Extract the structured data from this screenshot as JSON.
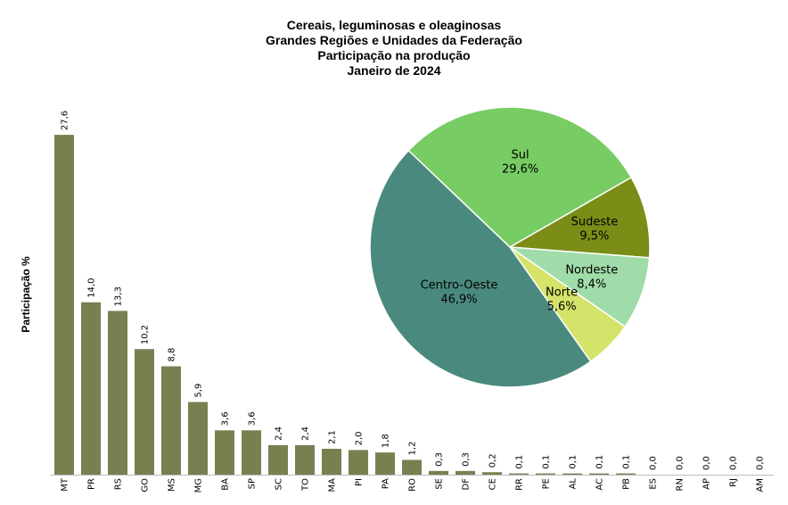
{
  "chart_data": [
    {
      "type": "bar",
      "title_lines": [
        "Cereais, leguminosas e oleaginosas",
        "Grandes Regiões e Unidades da Federação",
        "Participação na produção",
        "Janeiro de 2024"
      ],
      "ylabel": "Participação %",
      "xlabel": "",
      "ylim": [
        0,
        30
      ],
      "grid": false,
      "bar_color": "#788050",
      "categories": [
        "MT",
        "PR",
        "RS",
        "GO",
        "MS",
        "MG",
        "BA",
        "SP",
        "SC",
        "TO",
        "MA",
        "PI",
        "PA",
        "RO",
        "SE",
        "DF",
        "CE",
        "RR",
        "PE",
        "AL",
        "AC",
        "PB",
        "ES",
        "RN",
        "AP",
        "RJ",
        "AM"
      ],
      "values": [
        27.6,
        14.0,
        13.3,
        10.2,
        8.8,
        5.9,
        3.6,
        3.6,
        2.4,
        2.4,
        2.1,
        2.0,
        1.8,
        1.2,
        0.3,
        0.3,
        0.2,
        0.1,
        0.1,
        0.1,
        0.1,
        0.1,
        0.0,
        0.0,
        0.0,
        0.0,
        0.0
      ],
      "value_labels": [
        "27,6",
        "14,0",
        "13,3",
        "10,2",
        "8,8",
        "5,9",
        "3,6",
        "3,6",
        "2,4",
        "2,4",
        "2,1",
        "2,0",
        "1,8",
        "1,2",
        "0,3",
        "0,3",
        "0,2",
        "0,1",
        "0,1",
        "0,1",
        "0,1",
        "0,1",
        "0,0",
        "0,0",
        "0,0",
        "0,0",
        "0,0"
      ]
    },
    {
      "type": "pie",
      "slices": [
        {
          "name": "Sul",
          "value": 29.6,
          "label": "29,6%",
          "color": "#77cc63"
        },
        {
          "name": "Sudeste",
          "value": 9.5,
          "label": "9,5%",
          "color": "#7b8d17"
        },
        {
          "name": "Nordeste",
          "value": 8.4,
          "label": "8,4%",
          "color": "#a0dcaa"
        },
        {
          "name": "Norte",
          "value": 5.6,
          "label": "5,6%",
          "color": "#d6e36a"
        },
        {
          "name": "Centro-Oeste",
          "value": 46.9,
          "label": "46,9%",
          "color": "#4a8a7e"
        }
      ]
    }
  ]
}
